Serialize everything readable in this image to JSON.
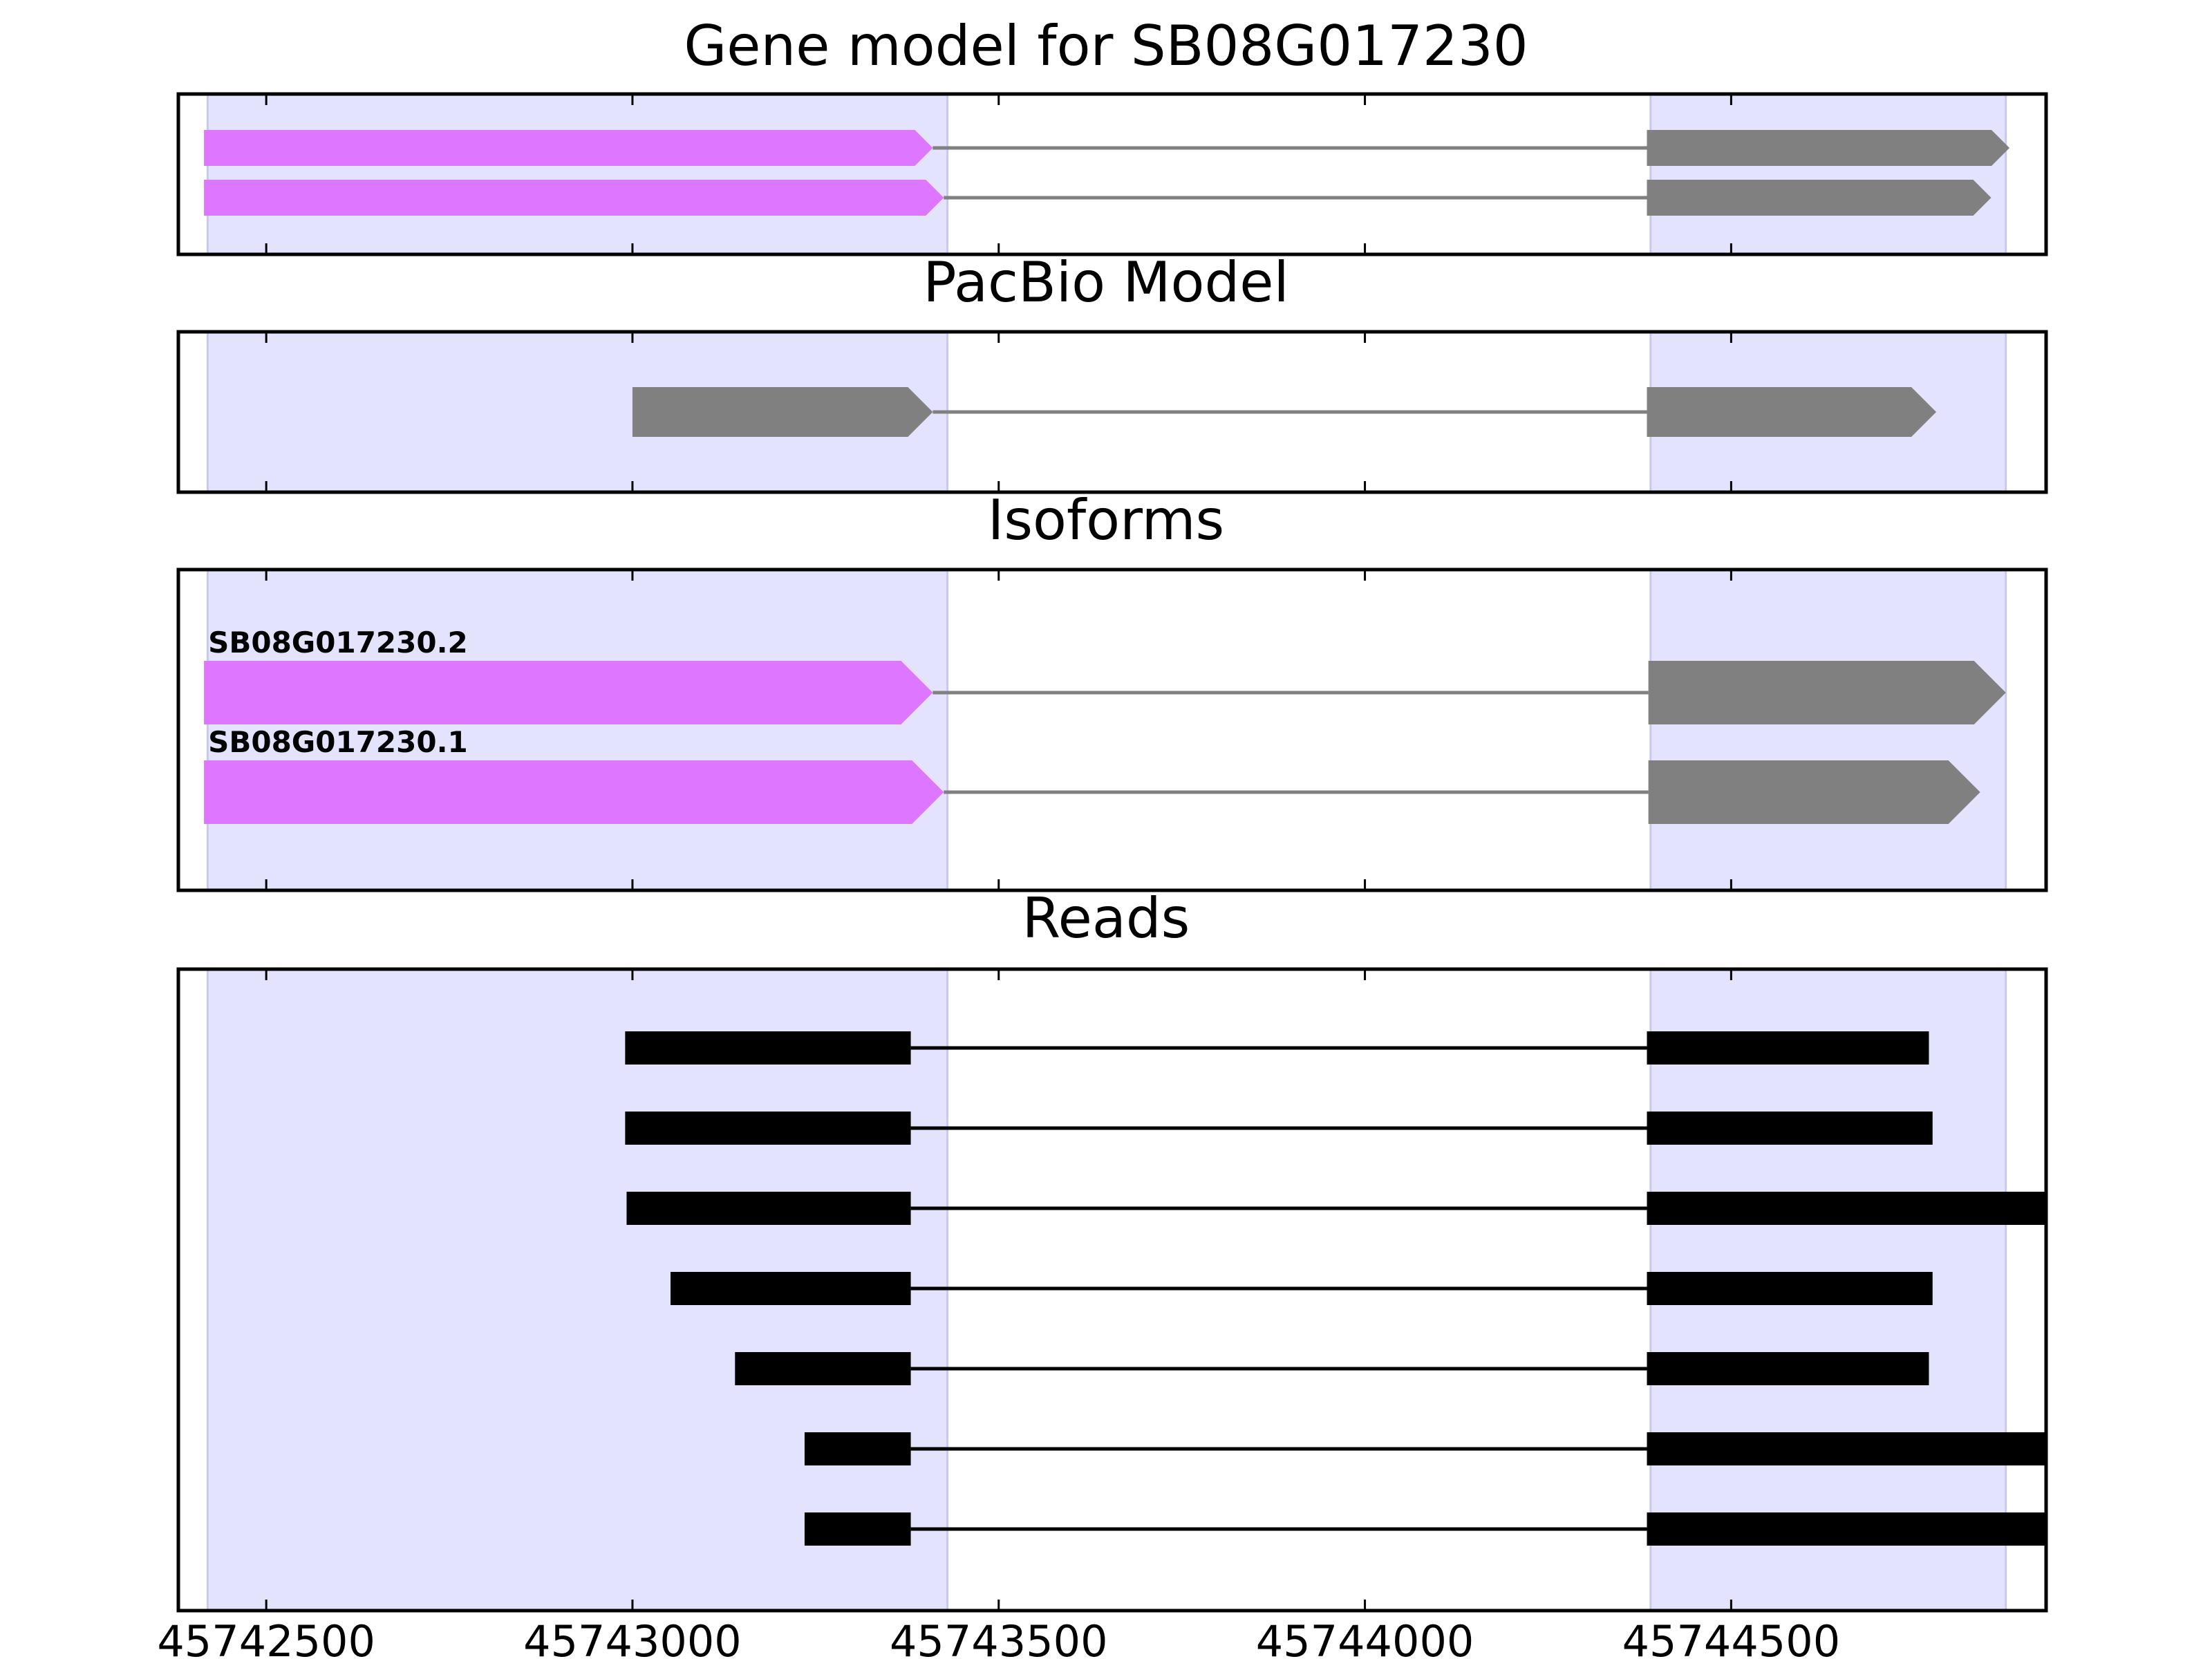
{
  "figure": {
    "colors": {
      "background": "#ffffff",
      "exon_shade": "#e3e3fd",
      "exon_shade_edge": "#c9c9f0",
      "utr_exon": "#dd77ff",
      "coding_exon": "#808080",
      "intron": "#808080",
      "read": "#000000",
      "axis": "#000000"
    },
    "x_axis": {
      "domain": [
        45742380,
        45744930
      ],
      "ticks": [
        45742500,
        45743000,
        45743500,
        45744000,
        45744500
      ],
      "tick_labels": [
        "45742500",
        "45743000",
        "45743500",
        "45744000",
        "45744500"
      ]
    },
    "shaded_exon_regions": [
      [
        45742420,
        45743430
      ],
      [
        45744390,
        45744875
      ]
    ]
  },
  "panels": [
    {
      "id": "gene-model",
      "title": "Gene model for SB08G017230",
      "tracks": [
        {
          "label": "",
          "exons": [
            {
              "start": 45742415,
              "end": 45743410,
              "kind": "utr"
            },
            {
              "start": 45744385,
              "end": 45744880,
              "kind": "coding"
            }
          ]
        },
        {
          "label": "",
          "exons": [
            {
              "start": 45742415,
              "end": 45743425,
              "kind": "utr"
            },
            {
              "start": 45744385,
              "end": 45744855,
              "kind": "coding"
            }
          ]
        }
      ]
    },
    {
      "id": "pacbio-model",
      "title": "PacBio Model",
      "tracks": [
        {
          "label": "",
          "exons": [
            {
              "start": 45743000,
              "end": 45743410,
              "kind": "coding"
            },
            {
              "start": 45744385,
              "end": 45744780,
              "kind": "coding"
            }
          ]
        }
      ]
    },
    {
      "id": "isoforms",
      "title": "Isoforms",
      "tracks": [
        {
          "label": "SB08G017230.2",
          "exons": [
            {
              "start": 45742415,
              "end": 45743410,
              "kind": "utr"
            },
            {
              "start": 45744387,
              "end": 45744875,
              "kind": "coding"
            }
          ]
        },
        {
          "label": "SB08G017230.1",
          "exons": [
            {
              "start": 45742415,
              "end": 45743425,
              "kind": "utr"
            },
            {
              "start": 45744387,
              "end": 45744840,
              "kind": "coding"
            }
          ]
        }
      ]
    },
    {
      "id": "reads",
      "title": "Reads",
      "tracks": [
        {
          "label": "",
          "exons": [
            {
              "start": 45742990,
              "end": 45743380,
              "kind": "read"
            },
            {
              "start": 45744385,
              "end": 45744770,
              "kind": "read"
            }
          ]
        },
        {
          "label": "",
          "exons": [
            {
              "start": 45742990,
              "end": 45743380,
              "kind": "read"
            },
            {
              "start": 45744385,
              "end": 45744775,
              "kind": "read"
            }
          ]
        },
        {
          "label": "",
          "exons": [
            {
              "start": 45742992,
              "end": 45743380,
              "kind": "read"
            },
            {
              "start": 45744385,
              "end": 45744930,
              "kind": "read"
            }
          ]
        },
        {
          "label": "",
          "exons": [
            {
              "start": 45743052,
              "end": 45743380,
              "kind": "read"
            },
            {
              "start": 45744385,
              "end": 45744775,
              "kind": "read"
            }
          ]
        },
        {
          "label": "",
          "exons": [
            {
              "start": 45743140,
              "end": 45743380,
              "kind": "read"
            },
            {
              "start": 45744385,
              "end": 45744770,
              "kind": "read"
            }
          ]
        },
        {
          "label": "",
          "exons": [
            {
              "start": 45743235,
              "end": 45743380,
              "kind": "read"
            },
            {
              "start": 45744385,
              "end": 45744930,
              "kind": "read"
            }
          ]
        },
        {
          "label": "",
          "exons": [
            {
              "start": 45743235,
              "end": 45743380,
              "kind": "read"
            },
            {
              "start": 45744385,
              "end": 45744930,
              "kind": "read"
            }
          ]
        }
      ]
    }
  ]
}
